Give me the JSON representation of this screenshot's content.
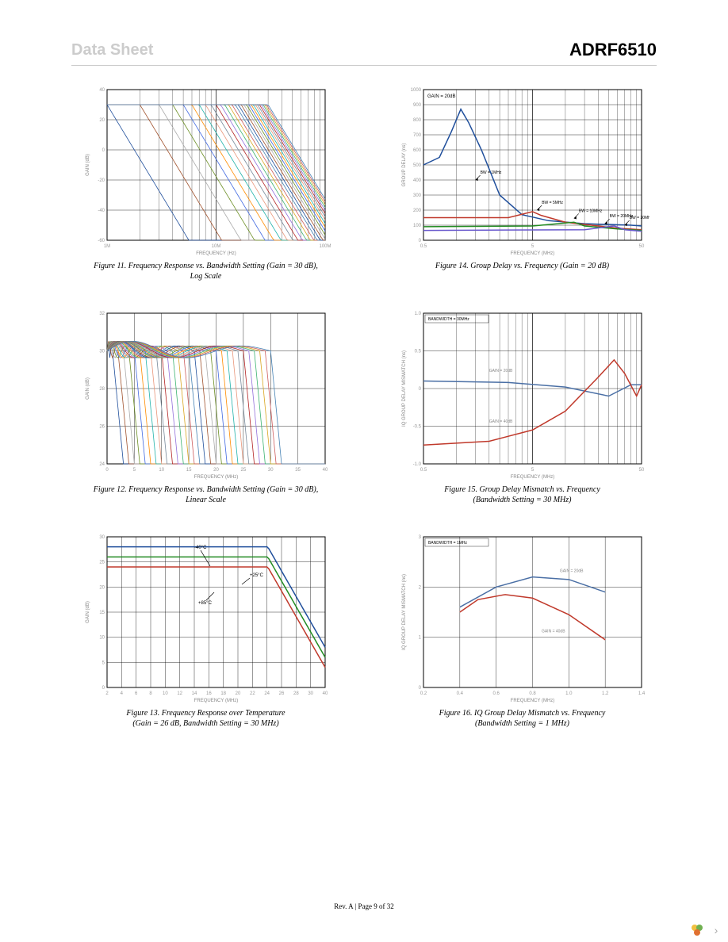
{
  "header": {
    "left": "Data Sheet",
    "right": "ADRF6510"
  },
  "footer": "Rev. A | Page 9 of 32",
  "figures": {
    "f11": {
      "caption_l1": "Figure 11. Frequency Response vs. Bandwidth Setting (Gain = 30 dB),",
      "caption_l2": "Log Scale",
      "xlabel": "FREQUENCY (Hz)",
      "ylabel": "GAIN (dB)",
      "xticks": [
        "1M",
        "10M",
        "100M"
      ],
      "yticks": [
        "-60",
        "-40",
        "-20",
        "0",
        "20",
        "40"
      ],
      "scale": "log",
      "multi_colors": [
        "#1f4e9b",
        "#a0522d",
        "#aaaaaa",
        "#6b8e23",
        "#4169e1",
        "#ff8c00",
        "#20b2aa",
        "#e9967a",
        "#778899",
        "#b22222",
        "#9370db",
        "#3cb371",
        "#daa520",
        "#cd5c5c",
        "#4682b4"
      ]
    },
    "f12": {
      "caption_l1": "Figure 12. Frequency Response vs. Bandwidth Setting (Gain = 30 dB),",
      "caption_l2": "Linear Scale",
      "xlabel": "FREQUENCY (MHz)",
      "ylabel": "GAIN (dB)",
      "xticks": [
        "0",
        "5",
        "10",
        "15",
        "20",
        "25",
        "30",
        "35",
        "40"
      ],
      "yticks": [
        "24",
        "26",
        "28",
        "30",
        "32"
      ],
      "scale": "linear",
      "multi_colors": [
        "#1f4e9b",
        "#a0522d",
        "#aaaaaa",
        "#6b8e23",
        "#4169e1",
        "#ff8c00",
        "#20b2aa",
        "#e9967a",
        "#778899",
        "#b22222",
        "#9370db",
        "#3cb371",
        "#daa520",
        "#cd5c5c",
        "#4682b4"
      ]
    },
    "f13": {
      "caption_l1": "Figure 13. Frequency Response over Temperature",
      "caption_l2": "(Gain = 26 dB, Bandwidth Setting = 30 MHz)",
      "xlabel": "FREQUENCY (MHz)",
      "ylabel": "GAIN (dB)",
      "xticks": [
        "2",
        "4",
        "6",
        "8",
        "10",
        "12",
        "14",
        "16",
        "18",
        "20",
        "22",
        "24",
        "26",
        "28",
        "30",
        "40"
      ],
      "yticks": [
        "0",
        "5",
        "10",
        "15",
        "20",
        "25",
        "30"
      ],
      "annotations": [
        "-40°C",
        "+25°C",
        "+85°C"
      ],
      "series": [
        {
          "color": "#1f4e9b",
          "label": "-40°C"
        },
        {
          "color": "#228b22",
          "label": "+25°C"
        },
        {
          "color": "#c0392b",
          "label": "+85°C"
        }
      ]
    },
    "f14": {
      "caption_l1": "Figure 14. Group Delay vs. Frequency (Gain = 20 dB)",
      "xlabel": "FREQUENCY (MHz)",
      "ylabel": "GROUP DELAY (ns)",
      "xticks": [
        "0.5",
        "5",
        "50"
      ],
      "yticks": [
        "0",
        "100",
        "200",
        "300",
        "400",
        "500",
        "600",
        "700",
        "800",
        "900",
        "1000"
      ],
      "scale": "log",
      "legend": "GAIN = 20dB",
      "annotations": [
        "BW = 1MHz",
        "BW = 5MHz",
        "BW = 10MHz",
        "BW = 20MHz",
        "BW = 30MHz"
      ],
      "series": [
        {
          "color": "#1f4e9b"
        },
        {
          "color": "#c0392b"
        },
        {
          "color": "#228b22"
        },
        {
          "color": "#6a5acd"
        }
      ]
    },
    "f15": {
      "caption_l1": "Figure 15. Group Delay Mismatch vs. Frequency",
      "caption_l2": "(Bandwidth Setting = 30 MHz)",
      "xlabel": "FREQUENCY (MHz)",
      "ylabel": "IQ GROUP DELAY MISMATCH (ns)",
      "xticks": [
        "0.5",
        "5",
        "50"
      ],
      "yticks": [
        "-1.0",
        "-0.5",
        "0",
        "0.5",
        "1.0"
      ],
      "scale": "log",
      "legend": "BANDWIDTH = 30MHz",
      "annotations": [
        "GAIN = 20dB",
        "GAIN = 40dB"
      ],
      "series": [
        {
          "color": "#4a6fa5",
          "label": "GAIN = 20dB"
        },
        {
          "color": "#c0392b",
          "label": "GAIN = 40dB"
        }
      ]
    },
    "f16": {
      "caption_l1": "Figure 16. IQ Group Delay Mismatch vs. Frequency",
      "caption_l2": "(Bandwidth Setting = 1 MHz)",
      "xlabel": "FREQUENCY (MHz)",
      "ylabel": "IQ GROUP DELAY MISMATCH (ns)",
      "xticks": [
        "0.2",
        "0.4",
        "0.6",
        "0.8",
        "1.0",
        "1.2",
        "1.4"
      ],
      "yticks": [
        "0",
        "1",
        "2",
        "3"
      ],
      "legend": "BANDWIDTH = 1MHz",
      "annotations": [
        "GAIN = 20dB",
        "GAIN = 40dB"
      ],
      "series": [
        {
          "color": "#4a6fa5",
          "label": "GAIN = 20dB"
        },
        {
          "color": "#c0392b",
          "label": "GAIN = 40dB"
        }
      ]
    }
  },
  "styling": {
    "grid_color": "#000",
    "bg": "#fff",
    "axis_fontsize": 6,
    "caption_fontsize": 10
  }
}
